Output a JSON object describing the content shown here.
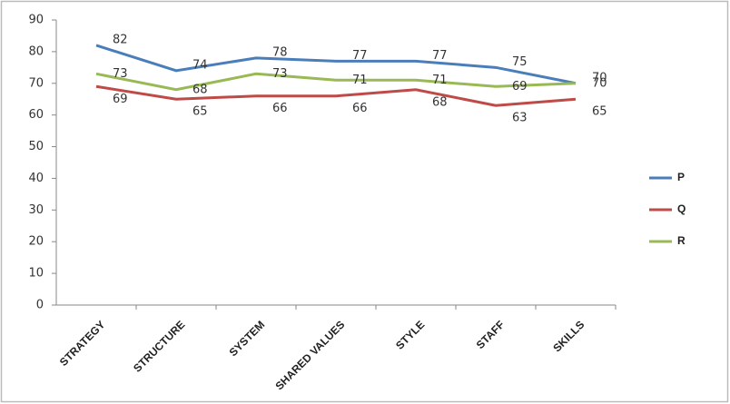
{
  "chart_data": {
    "type": "line",
    "categories": [
      "STRATEGY",
      "STRUCTURE",
      "SYSTEM",
      "SHARED VALUES",
      "STYLE",
      "STAFF",
      "SKILLS"
    ],
    "series": [
      {
        "name": "P",
        "color": "#4a7ebb",
        "values": [
          82,
          74,
          78,
          77,
          77,
          75,
          70
        ]
      },
      {
        "name": "Q",
        "color": "#be4b48",
        "values": [
          69,
          65,
          66,
          66,
          68,
          63,
          65
        ]
      },
      {
        "name": "R",
        "color": "#98b954",
        "values": [
          73,
          68,
          73,
          71,
          71,
          69,
          70
        ]
      }
    ],
    "ylim": [
      0,
      90
    ],
    "yticks": [
      0,
      10,
      20,
      30,
      40,
      50,
      60,
      70,
      80,
      90
    ],
    "grid": false,
    "legend": "right",
    "data_labels": true
  }
}
